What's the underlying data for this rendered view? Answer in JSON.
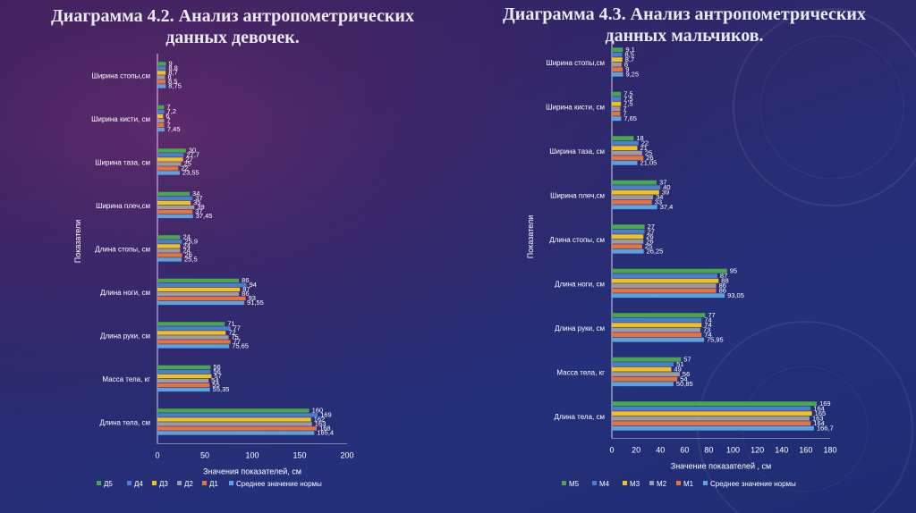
{
  "slide": {
    "title_left": "Диаграмма 4.2.  Анализ антропометрических данных девочек.",
    "title_right": "Диаграмма 4.3.  Анализ антропометрических данных мальчиков."
  },
  "colors": {
    "background": "#2b2a6e",
    "text": "#ffffff",
    "axis": "#cfd3e6",
    "series": [
      "#4aa84a",
      "#4a7fcf",
      "#f2c21b",
      "#9a9aa8",
      "#e8743b",
      "#5ba3e0"
    ]
  },
  "chart_data": [
    {
      "type": "bar",
      "orientation": "horizontal",
      "title": "Диаграмма 4.2.  Анализ антропометрических данных девочек.",
      "xlabel": "Значения показателей, см",
      "ylabel": "Показатели",
      "xlim": [
        0,
        200
      ],
      "xticks": [
        0,
        50,
        100,
        150,
        200
      ],
      "legend_position": "bottom",
      "categories": [
        "Ширина стопы,см",
        "Ширина кисти, см",
        "Ширина таза, см",
        "Ширина плеч,см",
        "Длина стопы, см",
        "Длина ноги, см",
        "Длина руки, см",
        "Масса тела, кг",
        "Длина тела, см"
      ],
      "series": [
        {
          "name": "Д5",
          "values": [
            9,
            7,
            30,
            34,
            24,
            86,
            71,
            56,
            160
          ]
        },
        {
          "name": "Д4",
          "values": [
            8.8,
            7.2,
            27.7,
            37,
            25.9,
            94,
            77,
            56,
            169
          ]
        },
        {
          "name": "Д3",
          "values": [
            8.7,
            6,
            27,
            35,
            24,
            87,
            72,
            57,
            162
          ]
        },
        {
          "name": "Д2",
          "values": [
            8,
            7,
            25,
            39,
            24,
            86,
            75,
            54,
            163
          ]
        },
        {
          "name": "Д1",
          "values": [
            8.5,
            7,
            22,
            37,
            26,
            93,
            77,
            55,
            168
          ]
        },
        {
          "name": "Среднее значение нормы",
          "values": [
            8.75,
            7.45,
            23.55,
            37.45,
            25.5,
            91.55,
            75.65,
            55.35,
            165.4
          ]
        }
      ],
      "value_labels": [
        [
          "9",
          "8,8",
          "8,7",
          "8",
          "8,5",
          "8,75"
        ],
        [
          "7",
          "7,2",
          "6",
          "7",
          "7",
          "7,45"
        ],
        [
          "30",
          "27,7",
          "27",
          "25",
          "22",
          "23,55"
        ],
        [
          "34",
          "37",
          "35",
          "39",
          "37",
          "37,45"
        ],
        [
          "24",
          "25,9",
          "24",
          "24",
          "26",
          "25,5"
        ],
        [
          "86",
          "94",
          "87",
          "86",
          "93",
          "91,55"
        ],
        [
          "71",
          "77",
          "72",
          "75",
          "77",
          "75,65"
        ],
        [
          "56",
          "56",
          "57",
          "54",
          "55",
          "55,35"
        ],
        [
          "160",
          "169",
          "162",
          "163",
          "168",
          "165,4"
        ]
      ]
    },
    {
      "type": "bar",
      "orientation": "horizontal",
      "title": "Диаграмма 4.3.  Анализ антропометрических данных мальчиков.",
      "xlabel": "Значение показателей , см",
      "ylabel": "Показатели",
      "xlim": [
        0,
        180
      ],
      "xticks": [
        0,
        20,
        40,
        60,
        80,
        100,
        120,
        140,
        160,
        180
      ],
      "legend_position": "bottom",
      "categories": [
        "Ширина стопы,см",
        "Ширина кисти, см",
        "Ширина таза, см",
        "Ширина плеч,см",
        "Длина стопы, см",
        "Длина ноги, см",
        "Длина руки, см",
        "Масса тела, кг",
        "Длина тела, см"
      ],
      "series": [
        {
          "name": "М5",
          "values": [
            9.1,
            7.5,
            18,
            37,
            27,
            95,
            77,
            57,
            169
          ]
        },
        {
          "name": "М4",
          "values": [
            8.5,
            7.5,
            22,
            40,
            27,
            87,
            74,
            51,
            164
          ]
        },
        {
          "name": "М3",
          "values": [
            8.7,
            7.5,
            21,
            39,
            26,
            88,
            74,
            49,
            165
          ]
        },
        {
          "name": "М2",
          "values": [
            8,
            7,
            25,
            34,
            26,
            86,
            73,
            56,
            163
          ]
        },
        {
          "name": "М1",
          "values": [
            9,
            7,
            26,
            33,
            25,
            86,
            74,
            54,
            164
          ]
        },
        {
          "name": "Среднее значение нормы",
          "values": [
            9.25,
            7.65,
            21.05,
            37.4,
            26.25,
            93.05,
            75.95,
            50.85,
            166.7
          ]
        }
      ],
      "value_labels": [
        [
          "9,1",
          "8,5",
          "8,7",
          "8",
          "9",
          "9,25"
        ],
        [
          "7,5",
          "7,5",
          "7,5",
          "7",
          "7",
          "7,65"
        ],
        [
          "18",
          "22",
          "21",
          "25",
          "26",
          "21,05"
        ],
        [
          "37",
          "40",
          "39",
          "34",
          "33",
          "37,4"
        ],
        [
          "27",
          "27",
          "26",
          "26",
          "25",
          "26,25"
        ],
        [
          "95",
          "87",
          "88",
          "86",
          "86",
          "93,05"
        ],
        [
          "77",
          "74",
          "74",
          "73",
          "74",
          "75,95"
        ],
        [
          "57",
          "51",
          "49",
          "56",
          "54",
          "50,85"
        ],
        [
          "169",
          "164",
          "165",
          "163",
          "164",
          "166,7"
        ]
      ]
    }
  ]
}
